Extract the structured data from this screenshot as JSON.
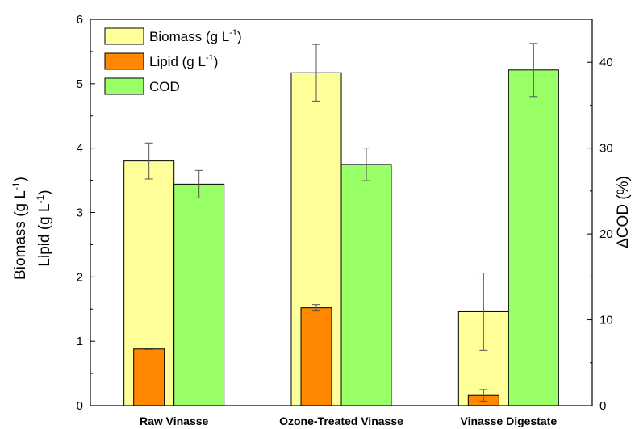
{
  "chart_data": {
    "type": "bar",
    "categories": [
      "Raw Vinasse",
      "Ozone-Treated Vinasse",
      "Vinasse Digestate"
    ],
    "series": [
      {
        "name": "Biomass (g L",
        "name_sup": "-1",
        "name_suffix": ")",
        "axis": "left",
        "color": "#ffff99",
        "values": [
          3.8,
          5.17,
          1.46
        ],
        "errors": [
          0.28,
          0.44,
          0.6
        ]
      },
      {
        "name": "Lipid (g L",
        "name_sup": "-1",
        "name_suffix": ")",
        "axis": "left",
        "color": "#ff8800",
        "values": [
          0.88,
          1.52,
          0.16
        ],
        "errors": [
          0.01,
          0.05,
          0.09
        ]
      },
      {
        "name": "COD",
        "name_sup": "",
        "name_suffix": "",
        "axis": "right",
        "color": "#99ff66",
        "values": [
          25.8,
          28.1,
          39.1
        ],
        "errors": [
          1.6,
          1.9,
          3.1
        ]
      }
    ],
    "left_axis": {
      "label_line1": "Biomass (g L",
      "label_line1_sup": "-1",
      "label_line1_suffix": ")",
      "label_line2": "Lipid (g L",
      "label_line2_sup": "-1",
      "label_line2_suffix": ")",
      "ylim": [
        0,
        6
      ],
      "ticks": [
        "0",
        "1",
        "2",
        "3",
        "4",
        "5",
        "6"
      ]
    },
    "right_axis": {
      "label": "ΔCOD (%)",
      "ylim": [
        0,
        45
      ],
      "ticks": [
        "0",
        "10",
        "20",
        "30",
        "40"
      ]
    },
    "legend_position": "top-left",
    "grid": false
  }
}
